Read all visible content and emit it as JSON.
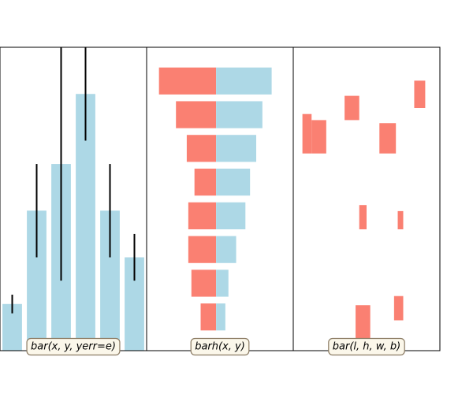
{
  "chart_data": [
    {
      "type": "bar",
      "label": "bar(x, y, yerr=e)",
      "x": [
        1,
        2,
        3,
        4,
        5,
        6
      ],
      "values": [
        1,
        3,
        4,
        5.5,
        3,
        2
      ],
      "yerr": [
        0.2,
        1,
        2.5,
        1,
        1,
        0.5
      ],
      "xlim": [
        0.5,
        6.5
      ],
      "ylim": [
        0,
        6.5
      ],
      "color": "#add8e6",
      "error_color": "#000000",
      "grid": false
    },
    {
      "type": "bar",
      "orientation": "horizontal",
      "label": "barh(x, y)",
      "y": [
        1,
        2,
        3,
        4,
        5,
        6,
        7,
        8
      ],
      "left_values": [
        -0.5,
        -0.8,
        -0.9,
        -0.9,
        -0.7,
        -0.95,
        -1.3,
        -1.85
      ],
      "right_values": [
        0.3,
        0.4,
        0.65,
        0.95,
        1.1,
        1.3,
        1.5,
        1.8
      ],
      "left_color": "#fa8072",
      "right_color": "#add8e6",
      "ylim": [
        0,
        9
      ],
      "xlim": [
        -2.25,
        2.5
      ],
      "grid": false
    },
    {
      "type": "bar",
      "label": "bar(l, h, w, b)",
      "bars": [
        {
          "x": 0.5,
          "width": 0.5,
          "bottom": 6.5,
          "height": 1.3
        },
        {
          "x": 1.0,
          "width": 0.8,
          "bottom": 6.5,
          "height": 1.1
        },
        {
          "x": 3.6,
          "width": 0.4,
          "bottom": 4.0,
          "height": 0.8
        },
        {
          "x": 2.8,
          "width": 0.8,
          "bottom": 7.6,
          "height": 0.8
        },
        {
          "x": 4.7,
          "width": 0.9,
          "bottom": 6.5,
          "height": 1.0
        },
        {
          "x": 3.4,
          "width": 0.8,
          "bottom": 0.0,
          "height": 1.5
        },
        {
          "x": 5.5,
          "width": 0.5,
          "bottom": 1.0,
          "height": 0.8
        },
        {
          "x": 5.7,
          "width": 0.3,
          "bottom": 4.0,
          "height": 0.6
        },
        {
          "x": 6.6,
          "width": 0.6,
          "bottom": 8.0,
          "height": 0.9
        }
      ],
      "xlim": [
        0,
        8
      ],
      "ylim": [
        0,
        10
      ],
      "color": "#fa8072",
      "grid": false
    }
  ],
  "label_box_fill": "#fbf7ea",
  "label_box_edge": "#8b7b63"
}
